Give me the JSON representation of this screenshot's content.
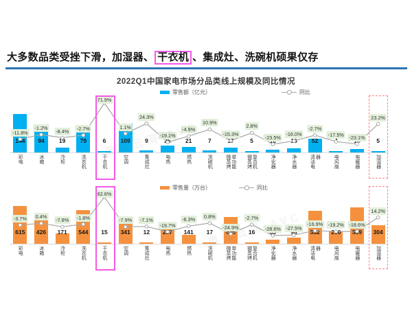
{
  "headline": {
    "pre": "大多数品类受挫下滑，加湿器、",
    "boxed": "干衣机",
    "post": "、集成灶、洗碗机硕果仅存"
  },
  "chart_title": "2022Q1中国家电市场分品类线上规模及同比情况",
  "watermark": "奥维云网 AVC",
  "colors": {
    "rule_blue": "#2e74b5",
    "bar_blue": "#00b0f0",
    "bar_orange": "#f5913e",
    "yoy_label_bg": "#e2efda",
    "trend_line": "#a6a6a6",
    "highlight_magenta": "#f25ae6",
    "highlight_red_dashed": "#fb8080"
  },
  "chart_data": [
    {
      "type": "bar+line",
      "bar_legend": "零售额（亿元）",
      "line_legend": "同比",
      "legend_position": "top-center",
      "grid": false,
      "categories": [
        "彩电",
        "冰箱",
        "冷柜",
        "洗衣机",
        "干衣机",
        "空调",
        "集成灶",
        "电热",
        "燃热",
        "洗碗机",
        "微蒸烤单功能",
        "微蒸烤复合机",
        "净化器",
        "净水器",
        "清洁电器",
        "电风扇",
        "电暖器",
        "加湿器"
      ],
      "bar_values": [
        144,
        94,
        19,
        79,
        6,
        109,
        9,
        25,
        21,
        7,
        17,
        5,
        10,
        16,
        52,
        4,
        13,
        5
      ],
      "yoy_pct": [
        -11.8,
        -1.2,
        -8.4,
        -2.7,
        71.9,
        1.1,
        24.3,
        -19.1,
        -4.9,
        10.9,
        -15.3,
        2.8,
        -23.5,
        -16,
        -2.7,
        -17.5,
        -23.1,
        23.2
      ],
      "yoy_labels": [
        "-11.8%",
        "-1.2%",
        "-8.4%",
        "-2.7%",
        "71.9%",
        "1.1%",
        "24.3%",
        "-19.1%",
        "-4.9%",
        "10.9%",
        "-15.3%",
        "2.8%",
        "-23.5%",
        "-16.0%",
        "-2.7%",
        "-17.5%",
        "-23.1%",
        "23.2%"
      ],
      "highlight_solid_category": "干衣机",
      "highlight_dashed_category": "加湿器"
    },
    {
      "type": "bar+line",
      "bar_legend": "零售量（万台）",
      "line_legend": "同比",
      "legend_position": "top-center",
      "grid": false,
      "categories": [
        "彩电",
        "冰箱",
        "冷柜",
        "洗衣机",
        "干衣机",
        "空调",
        "集成灶",
        "电热",
        "燃热",
        "洗碗机",
        "微蒸烤单功能",
        "微蒸烤复合机",
        "净化器",
        "净水器",
        "清洁电器",
        "电风扇",
        "电暖器",
        "加湿器"
      ],
      "bar_values": [
        615,
        426,
        171,
        544,
        15,
        341,
        12,
        257,
        141,
        17,
        436,
        16,
        63,
        98,
        532,
        200,
        589,
        304
      ],
      "yoy_pct": [
        -3.7,
        0.4,
        -7.8,
        -1.8,
        62.6,
        -7.9,
        -7.1,
        -19.7,
        -6.3,
        0.8,
        -24.9,
        -2.7,
        -28.6,
        -27.5,
        -16.9,
        -19.2,
        -18.6,
        14.2
      ],
      "yoy_labels": [
        "-3.7%",
        "0.4%",
        "-7.8%",
        "-1.8%",
        "62.6%",
        "-7.9%",
        "-7.1%",
        "-19.7%",
        "-6.3%",
        "0.8%",
        "-24.9%",
        "-2.7%",
        "-28.6%",
        "-27.5%",
        "-16.9%",
        "-19.2%",
        "-18.6%",
        "14.2%"
      ],
      "highlight_solid_category": "干衣机",
      "highlight_dashed_category": "加湿器"
    }
  ]
}
